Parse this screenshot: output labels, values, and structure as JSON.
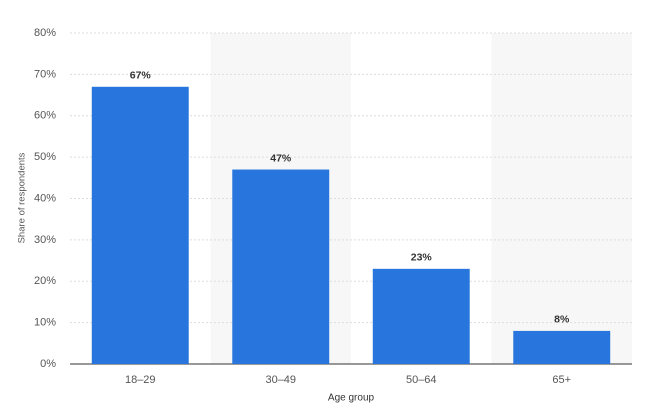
{
  "chart_data": {
    "type": "bar",
    "x_label": "Age group",
    "y_label": "Share of respondents",
    "categories": [
      "18–29",
      "30–49",
      "50–64",
      "65+"
    ],
    "values": [
      67,
      47,
      23,
      8
    ],
    "value_labels": [
      "67%",
      "47%",
      "23%",
      "8%"
    ],
    "color": "#2876dd",
    "ylim": [
      0,
      80
    ],
    "yticks": [
      {
        "value": 0,
        "label": "0%"
      },
      {
        "value": 10,
        "label": "10%"
      },
      {
        "value": 20,
        "label": "20%"
      },
      {
        "value": 30,
        "label": "30%"
      },
      {
        "value": 40,
        "label": "40%"
      },
      {
        "value": 50,
        "label": "50%"
      },
      {
        "value": 60,
        "label": "60%"
      },
      {
        "value": 70,
        "label": "70%"
      },
      {
        "value": 80,
        "label": "80%"
      }
    ],
    "grid": true
  }
}
